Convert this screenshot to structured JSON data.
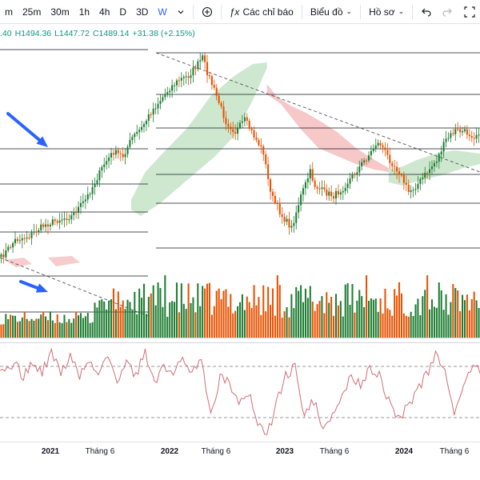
{
  "toolbar": {
    "intervals": [
      "m",
      "25m",
      "30m",
      "1h",
      "4h",
      "D",
      "3D",
      "W"
    ],
    "active_interval": "W",
    "indicators_label": "Các chỉ báo",
    "layout_label": "Biểu đồ",
    "profile_label": "Hồ sơ",
    "icons": [
      "chevron-down-icon",
      "compare-icon",
      "fx-icon",
      "undo-icon",
      "redo-icon",
      "fullscreen-icon"
    ]
  },
  "legend": {
    "open_partial": ".40",
    "high": "H1494.36",
    "low": "L1447.72",
    "close": "C1489.14",
    "change": "+31.38 (+2.15%)"
  },
  "colors": {
    "up": "#1e7d32",
    "down": "#e65100",
    "cloud_green": "#a5d6a7",
    "cloud_red": "#ef9a9a",
    "rsi_line": "#d16d79",
    "arrow": "#2962ff",
    "level_line": "#131722"
  },
  "chart_data": [
    {
      "type": "candlestick",
      "title": "",
      "x_axis_labels": [
        "2021",
        "Tháng 6",
        "2022",
        "Tháng 6",
        "2023",
        "Tháng 6",
        "2024",
        "Tháng 6"
      ],
      "x_range": [
        "2020-09",
        "2024-08"
      ],
      "y_approx_range": [
        850,
        1540
      ],
      "last_close": 1489.14,
      "horizontal_levels_approx": [
        1530,
        1450,
        1360,
        1310,
        1200,
        1075
      ],
      "annotations": [
        "blue-arrow",
        "blue-arrow",
        "dashed-trendline",
        "dashed-trendline"
      ]
    },
    {
      "type": "bar",
      "title": "",
      "series": [
        {
          "values_note": "weekly volume bars, green up / orange down"
        }
      ]
    },
    {
      "type": "line",
      "title": "",
      "reference_levels": [
        "upper-dashed",
        "lower-dashed"
      ]
    }
  ]
}
